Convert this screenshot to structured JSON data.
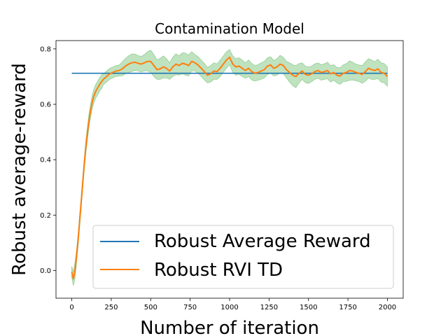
{
  "chart_data": {
    "type": "line",
    "title": "Contamination Model",
    "xlabel": "Number of iteration",
    "ylabel": "Robust average-reward",
    "xlim": [
      -100,
      2100
    ],
    "ylim": [
      -0.1,
      0.83
    ],
    "xticks": [
      0,
      250,
      500,
      750,
      1000,
      1250,
      1500,
      1750,
      2000
    ],
    "xtick_labels": [
      "0",
      "250",
      "500",
      "750",
      "1000",
      "1250",
      "1500",
      "1750",
      "2000"
    ],
    "yticks": [
      0.0,
      0.2,
      0.4,
      0.6,
      0.8
    ],
    "ytick_labels": [
      "0.0",
      "0.2",
      "0.4",
      "0.6",
      "0.8"
    ],
    "legend_position": "lower-right",
    "series": [
      {
        "name": "Robust Average Reward",
        "color": "#1f77b4",
        "style": "constant",
        "x": [
          0,
          2000
        ],
        "y": [
          0.712,
          0.712
        ]
      },
      {
        "name": "Robust RVI TD",
        "color": "#ff7f0e",
        "band_color": "#2ca02c",
        "x": [
          0,
          10,
          20,
          30,
          40,
          50,
          60,
          70,
          80,
          90,
          100,
          110,
          120,
          130,
          140,
          150,
          160,
          170,
          180,
          190,
          200,
          220,
          240,
          260,
          280,
          300,
          320,
          340,
          360,
          380,
          400,
          420,
          440,
          460,
          480,
          500,
          520,
          540,
          560,
          580,
          600,
          620,
          640,
          660,
          680,
          700,
          720,
          740,
          760,
          780,
          800,
          820,
          840,
          860,
          880,
          900,
          920,
          940,
          960,
          980,
          1000,
          1020,
          1040,
          1060,
          1080,
          1100,
          1120,
          1140,
          1160,
          1180,
          1200,
          1220,
          1240,
          1260,
          1280,
          1300,
          1320,
          1340,
          1360,
          1380,
          1400,
          1420,
          1440,
          1460,
          1480,
          1500,
          1520,
          1540,
          1560,
          1580,
          1600,
          1620,
          1640,
          1660,
          1680,
          1700,
          1720,
          1740,
          1760,
          1780,
          1800,
          1820,
          1840,
          1860,
          1880,
          1900,
          1920,
          1940,
          1960,
          1980,
          2000
        ],
        "y": [
          -0.005,
          -0.03,
          0.0,
          0.05,
          0.11,
          0.18,
          0.25,
          0.32,
          0.39,
          0.45,
          0.5,
          0.545,
          0.58,
          0.61,
          0.63,
          0.645,
          0.655,
          0.665,
          0.675,
          0.682,
          0.69,
          0.7,
          0.71,
          0.715,
          0.72,
          0.722,
          0.728,
          0.738,
          0.745,
          0.75,
          0.752,
          0.748,
          0.745,
          0.75,
          0.755,
          0.755,
          0.74,
          0.725,
          0.728,
          0.735,
          0.73,
          0.72,
          0.735,
          0.745,
          0.74,
          0.748,
          0.745,
          0.74,
          0.755,
          0.75,
          0.742,
          0.73,
          0.718,
          0.705,
          0.71,
          0.72,
          0.718,
          0.73,
          0.745,
          0.76,
          0.77,
          0.745,
          0.735,
          0.738,
          0.73,
          0.722,
          0.73,
          0.718,
          0.712,
          0.715,
          0.72,
          0.725,
          0.738,
          0.742,
          0.73,
          0.735,
          0.745,
          0.74,
          0.725,
          0.715,
          0.705,
          0.7,
          0.712,
          0.72,
          0.708,
          0.705,
          0.71,
          0.718,
          0.722,
          0.715,
          0.718,
          0.722,
          0.71,
          0.715,
          0.705,
          0.702,
          0.712,
          0.715,
          0.722,
          0.72,
          0.715,
          0.712,
          0.708,
          0.718,
          0.73,
          0.725,
          0.722,
          0.728,
          0.715,
          0.712,
          0.7
        ],
        "band_halfwidth": [
          0.02,
          0.025,
          0.03,
          0.025,
          0.025,
          0.025,
          0.025,
          0.025,
          0.025,
          0.025,
          0.025,
          0.025,
          0.025,
          0.025,
          0.025,
          0.025,
          0.025,
          0.025,
          0.025,
          0.025,
          0.02,
          0.02,
          0.02,
          0.02,
          0.02,
          0.02,
          0.025,
          0.028,
          0.03,
          0.032,
          0.03,
          0.028,
          0.028,
          0.03,
          0.035,
          0.04,
          0.04,
          0.035,
          0.038,
          0.04,
          0.035,
          0.03,
          0.035,
          0.038,
          0.035,
          0.038,
          0.04,
          0.038,
          0.035,
          0.03,
          0.03,
          0.03,
          0.03,
          0.028,
          0.03,
          0.03,
          0.028,
          0.03,
          0.03,
          0.03,
          0.028,
          0.03,
          0.03,
          0.03,
          0.03,
          0.028,
          0.03,
          0.03,
          0.028,
          0.028,
          0.03,
          0.03,
          0.03,
          0.03,
          0.028,
          0.03,
          0.032,
          0.03,
          0.03,
          0.035,
          0.038,
          0.04,
          0.035,
          0.03,
          0.03,
          0.03,
          0.028,
          0.028,
          0.028,
          0.028,
          0.028,
          0.03,
          0.03,
          0.028,
          0.028,
          0.03,
          0.03,
          0.032,
          0.035,
          0.032,
          0.03,
          0.03,
          0.032,
          0.035,
          0.035,
          0.035,
          0.032,
          0.035,
          0.035,
          0.035,
          0.035
        ]
      }
    ]
  }
}
